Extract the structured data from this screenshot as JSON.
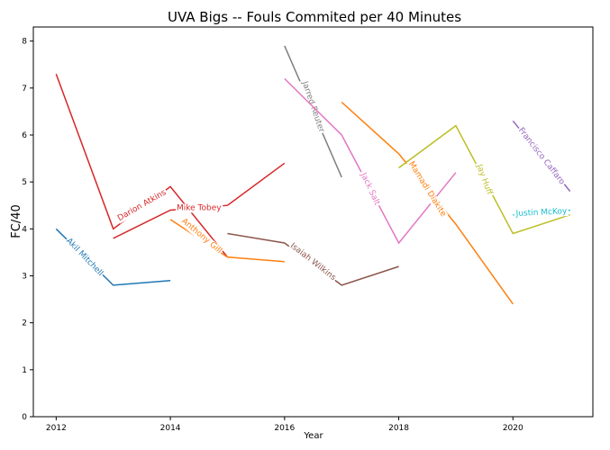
{
  "chart_data": {
    "type": "line",
    "title": "UVA Bigs -- Fouls Commited per 40 Minutes",
    "xlabel": "Year",
    "ylabel": "FC/40",
    "xlim": [
      2011.6,
      2021.4
    ],
    "ylim": [
      0,
      8.3
    ],
    "xticks": [
      2012,
      2014,
      2016,
      2018,
      2020
    ],
    "yticks": [
      0,
      1,
      2,
      3,
      4,
      5,
      6,
      7,
      8
    ],
    "grid": false,
    "legend": "none (labels placed inline on lines)",
    "series": [
      {
        "name": "Akil Mitchell",
        "color": "#1f77b4",
        "x": [
          2012,
          2013,
          2014
        ],
        "y": [
          4.0,
          2.8,
          2.9
        ],
        "label_x": 2012.5,
        "label_y": 3.4,
        "label_angle": 46
      },
      {
        "name": "Darion Atkins",
        "color": "#d62728",
        "x": [
          2012,
          2013,
          2014,
          2015
        ],
        "y": [
          7.3,
          4.0,
          4.9,
          3.4
        ],
        "label_x": 2013.5,
        "label_y": 4.5,
        "label_angle": -30
      },
      {
        "name": "Mike Tobey",
        "color": "#d62728",
        "x": [
          2013,
          2014,
          2015,
          2016
        ],
        "y": [
          3.8,
          4.4,
          4.5,
          5.4
        ],
        "label_x": 2014.5,
        "label_y": 4.45,
        "label_angle": 0
      },
      {
        "name": "Anthony Gill",
        "color": "#ff7f0e",
        "x": [
          2014,
          2015,
          2016
        ],
        "y": [
          4.2,
          3.4,
          3.3
        ],
        "label_x": 2014.55,
        "label_y": 3.85,
        "label_angle": 40
      },
      {
        "name": "Isaiah Wilkins",
        "color": "#8c564b",
        "x": [
          2015,
          2016,
          2017,
          2018
        ],
        "y": [
          3.9,
          3.7,
          2.8,
          3.2
        ],
        "label_x": 2016.5,
        "label_y": 3.3,
        "label_angle": 38
      },
      {
        "name": "Jarred Reuter",
        "color": "#7f7f7f",
        "x": [
          2016,
          2017
        ],
        "y": [
          7.9,
          5.1
        ],
        "label_x": 2016.5,
        "label_y": 6.6,
        "label_angle": 71
      },
      {
        "name": "Jack Salt",
        "color": "#e377c2",
        "x": [
          2016,
          2017,
          2018,
          2019
        ],
        "y": [
          7.2,
          6.0,
          3.7,
          5.2
        ],
        "label_x": 2017.5,
        "label_y": 4.85,
        "label_angle": 65
      },
      {
        "name": "Mamadi Diakite",
        "color": "#ff7f0e",
        "x": [
          2017,
          2018,
          2019,
          2020
        ],
        "y": [
          6.7,
          5.6,
          4.1,
          2.4
        ],
        "label_x": 2018.5,
        "label_y": 4.85,
        "label_angle": 58
      },
      {
        "name": "Jay Huff",
        "color": "#bcbd22",
        "x": [
          2018,
          2019,
          2020,
          2021
        ],
        "y": [
          5.3,
          6.2,
          3.9,
          4.3
        ],
        "label_x": 2019.5,
        "label_y": 5.05,
        "label_angle": 70
      },
      {
        "name": "Francisco Caffaro",
        "color": "#9467bd",
        "x": [
          2020,
          2021
        ],
        "y": [
          6.3,
          4.8
        ],
        "label_x": 2020.5,
        "label_y": 5.55,
        "label_angle": 52
      },
      {
        "name": "Justin McKoy",
        "color": "#17becf",
        "x": [
          2020,
          2021
        ],
        "y": [
          4.3,
          4.4
        ],
        "label_x": 2020.5,
        "label_y": 4.35,
        "label_angle": -3
      }
    ]
  }
}
